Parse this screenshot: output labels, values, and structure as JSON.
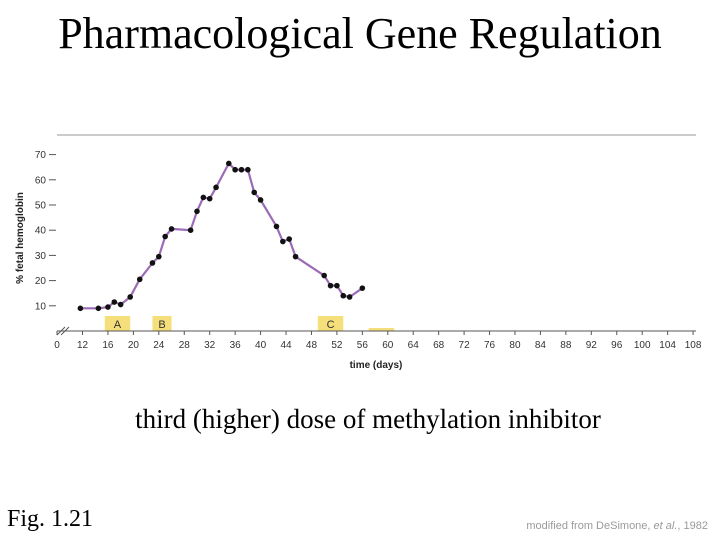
{
  "slide": {
    "title": "Pharmacological Gene Regulation",
    "caption": "third (higher) dose of methylation inhibitor",
    "fig_label": "Fig. 1.21",
    "credit_prefix": "modified from De",
    "credit_name": "Simone, ",
    "credit_etal": "et al.",
    "credit_suffix": ", 1982"
  },
  "chart_data": {
    "type": "line",
    "xlabel": "time (days)",
    "ylabel": "% fetal hemoglobin",
    "xlim": [
      0,
      108
    ],
    "ylim": [
      0,
      70
    ],
    "x_ticks": [
      0,
      12,
      16,
      20,
      24,
      28,
      32,
      36,
      40,
      44,
      48,
      52,
      56,
      60,
      64,
      68,
      72,
      76,
      80,
      84,
      88,
      92,
      96,
      100,
      104,
      108
    ],
    "y_ticks": [
      10,
      20,
      30,
      40,
      50,
      60,
      70
    ],
    "axis_break": true,
    "grid": false,
    "line_color": "#9b6bb5",
    "point_color": "#111111",
    "series": [
      {
        "x": [
          11,
          14.5,
          16,
          17,
          18,
          19.5,
          21,
          23,
          24,
          25,
          26,
          29,
          30,
          31,
          32,
          33,
          35,
          36,
          37,
          38,
          39,
          40,
          42.5,
          43.5,
          44.5,
          45.5,
          50,
          51,
          52,
          53,
          54,
          56
        ],
        "y": [
          9,
          9,
          9.5,
          11.5,
          10.5,
          13.5,
          20.5,
          27,
          29.5,
          37.5,
          40.5,
          40,
          47.5,
          53,
          52.5,
          57,
          66.5,
          64,
          64,
          64,
          55,
          52,
          41.5,
          35.5,
          36.5,
          29.5,
          22,
          18,
          18,
          14,
          13.5,
          17
        ]
      }
    ],
    "dose_boxes": [
      {
        "label": "A",
        "x_start": 15.5,
        "x_end": 19.5,
        "color": "#f5df7a"
      },
      {
        "label": "B",
        "x_start": 23,
        "x_end": 26,
        "color": "#f5df7a"
      },
      {
        "label": "C",
        "x_start": 49,
        "x_end": 53,
        "color": "#f5df7a"
      },
      {
        "label": "",
        "x_start": 57,
        "x_end": 61,
        "color": "#f5df7a"
      }
    ]
  }
}
